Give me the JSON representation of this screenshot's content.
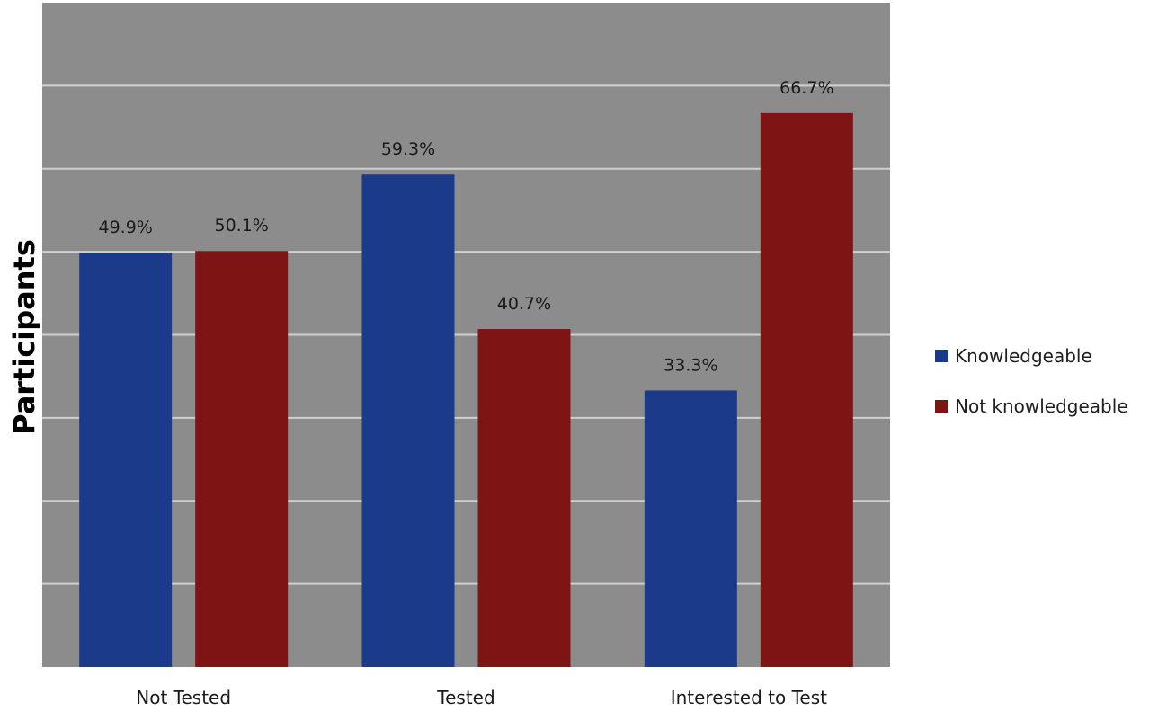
{
  "chart_data": {
    "type": "bar",
    "categories": [
      "Not Tested",
      "Tested",
      "Interested to Test"
    ],
    "series": [
      {
        "name": "Knowledgeable",
        "values": [
          49.9,
          59.3,
          33.3
        ],
        "color": "#1b3a8a"
      },
      {
        "name": "Not knowledgeable",
        "values": [
          50.1,
          40.7,
          66.7
        ],
        "color": "#7e1414"
      }
    ],
    "data_labels": [
      [
        "49.9%",
        "59.3%",
        "33.3%"
      ],
      [
        "50.1%",
        "40.7%",
        "66.7%"
      ]
    ],
    "xlabel": "",
    "ylabel": "Participants",
    "ylim": [
      0,
      80
    ],
    "grid": true,
    "legend_position": "right",
    "plot_background": "#8c8c8c",
    "gridline_color": "#d0d0d0"
  }
}
